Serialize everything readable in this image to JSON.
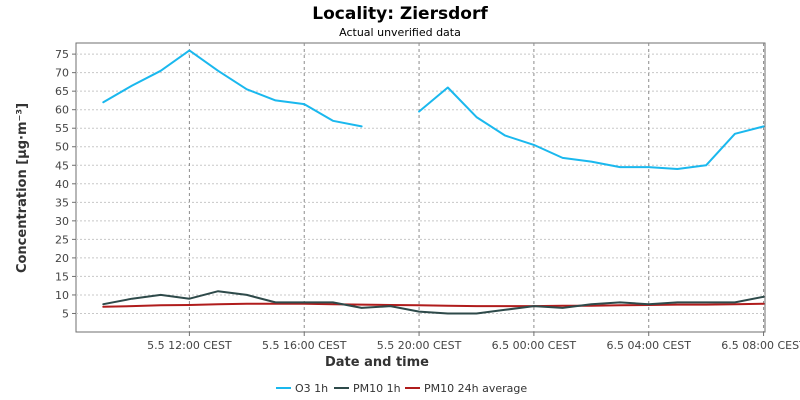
{
  "chart_data": {
    "type": "line",
    "title": "Locality: Ziersdorf",
    "subtitle": "Actual unverified data",
    "xlabel": "Date and time",
    "ylabel": "Concentration [µg·m⁻³]",
    "ylim": [
      0,
      78
    ],
    "x_range": [
      -1.95,
      22.05
    ],
    "y_ticks": [
      5,
      10,
      15,
      20,
      25,
      30,
      35,
      40,
      45,
      50,
      55,
      60,
      65,
      70,
      75
    ],
    "x_ticks": [
      {
        "x": 2,
        "label": "5.5 12:00 CEST"
      },
      {
        "x": 6,
        "label": "5.5 16:00 CEST"
      },
      {
        "x": 10,
        "label": "5.5 20:00 CEST"
      },
      {
        "x": 14,
        "label": "6.5 00:00 CEST"
      },
      {
        "x": 18,
        "label": "6.5 04:00 CEST"
      },
      {
        "x": 22,
        "label": "6.5 08:00 CEST"
      }
    ],
    "grid": true,
    "legend_position": "bottom",
    "series": [
      {
        "name": "O3 1h",
        "color": "#1ab8ee",
        "points": [
          [
            -1,
            62
          ],
          [
            0,
            66.5
          ],
          [
            1,
            70.5
          ],
          [
            2,
            76
          ],
          [
            3,
            70.5
          ],
          [
            4,
            65.5
          ],
          [
            5,
            62.5
          ],
          [
            6,
            61.5
          ],
          [
            7,
            57
          ],
          [
            8,
            55.5
          ],
          [
            9,
            null
          ],
          [
            10,
            59.5
          ],
          [
            11,
            66
          ],
          [
            12,
            58
          ],
          [
            13,
            53
          ],
          [
            14,
            50.5
          ],
          [
            15,
            47
          ],
          [
            16,
            46
          ],
          [
            17,
            44.5
          ],
          [
            18,
            44.5
          ],
          [
            19,
            44
          ],
          [
            20,
            45
          ],
          [
            21,
            53.5
          ],
          [
            22,
            55.5
          ]
        ]
      },
      {
        "name": "PM10 1h",
        "color": "#2e4a4a",
        "points": [
          [
            -1,
            7.5
          ],
          [
            0,
            9
          ],
          [
            1,
            10
          ],
          [
            2,
            9
          ],
          [
            3,
            11
          ],
          [
            4,
            10
          ],
          [
            5,
            8
          ],
          [
            6,
            8
          ],
          [
            7,
            8
          ],
          [
            8,
            6.5
          ],
          [
            9,
            7
          ],
          [
            10,
            5.5
          ],
          [
            11,
            5
          ],
          [
            12,
            5
          ],
          [
            13,
            6
          ],
          [
            14,
            7
          ],
          [
            15,
            6.5
          ],
          [
            16,
            7.5
          ],
          [
            17,
            8
          ],
          [
            18,
            7.5
          ],
          [
            19,
            8
          ],
          [
            20,
            8
          ],
          [
            21,
            8
          ],
          [
            22,
            9.5
          ]
        ]
      },
      {
        "name": "PM10 24h average",
        "color": "#b01c1c",
        "points": [
          [
            -1,
            6.8
          ],
          [
            0,
            7
          ],
          [
            1,
            7.2
          ],
          [
            2,
            7.3
          ],
          [
            3,
            7.5
          ],
          [
            4,
            7.6
          ],
          [
            5,
            7.6
          ],
          [
            6,
            7.6
          ],
          [
            7,
            7.5
          ],
          [
            8,
            7.4
          ],
          [
            9,
            7.3
          ],
          [
            10,
            7.2
          ],
          [
            11,
            7.1
          ],
          [
            12,
            7
          ],
          [
            13,
            7
          ],
          [
            14,
            7
          ],
          [
            15,
            7.1
          ],
          [
            16,
            7.1
          ],
          [
            17,
            7.2
          ],
          [
            18,
            7.3
          ],
          [
            19,
            7.4
          ],
          [
            20,
            7.4
          ],
          [
            21,
            7.5
          ],
          [
            22,
            7.6
          ]
        ]
      }
    ]
  }
}
